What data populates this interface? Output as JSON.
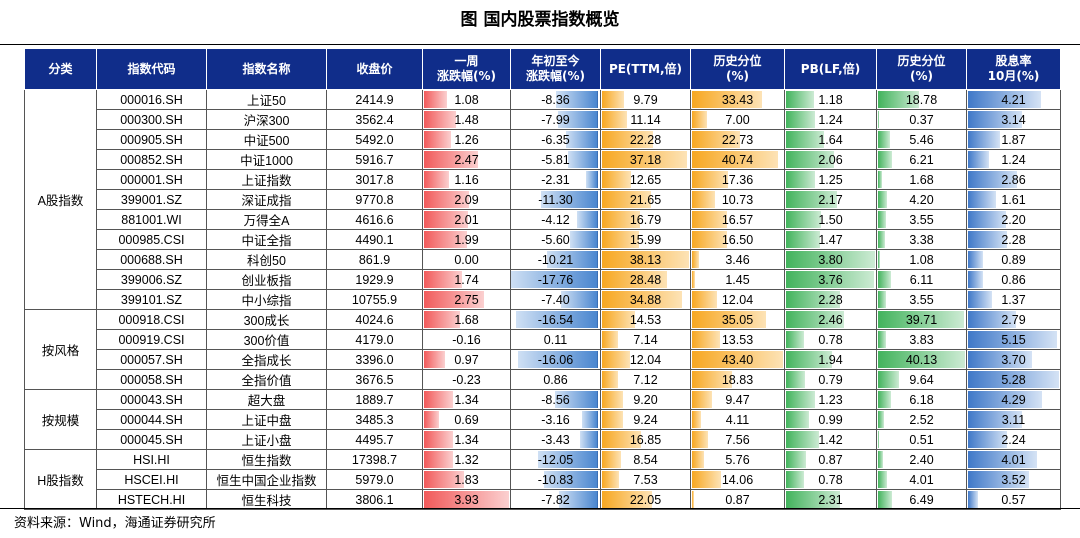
{
  "title": "图    国内股票指数概览",
  "source": "资料来源：Wind，海通证券研究所",
  "columns": [
    "分类",
    "指数代码",
    "指数名称",
    "收盘价",
    "一周\n涨跌幅(%)",
    "年初至今\n涨跌幅(%)",
    "PE(TTM,倍)",
    "历史分位\n(%)",
    "PB(LF,倍)",
    "历史分位\n(%)",
    "股息率\n10月(%)"
  ],
  "groups": [
    {
      "label": "A股指数",
      "rows": [
        [
          "000016.SH",
          "上证50",
          "2414.9",
          "1.08",
          "-8.36",
          "9.79",
          "33.43",
          "1.18",
          "18.78",
          "4.21"
        ],
        [
          "000300.SH",
          "沪深300",
          "3562.4",
          "1.48",
          "-7.99",
          "11.14",
          "7.00",
          "1.24",
          "0.37",
          "3.14"
        ],
        [
          "000905.SH",
          "中证500",
          "5492.0",
          "1.26",
          "-6.35",
          "22.28",
          "22.73",
          "1.64",
          "5.46",
          "1.87"
        ],
        [
          "000852.SH",
          "中证1000",
          "5916.7",
          "2.47",
          "-5.81",
          "37.18",
          "40.74",
          "2.06",
          "6.21",
          "1.24"
        ],
        [
          "000001.SH",
          "上证指数",
          "3017.8",
          "1.16",
          "-2.31",
          "12.65",
          "17.36",
          "1.25",
          "1.68",
          "2.86"
        ],
        [
          "399001.SZ",
          "深证成指",
          "9770.8",
          "2.09",
          "-11.30",
          "21.65",
          "10.73",
          "2.17",
          "4.20",
          "1.61"
        ],
        [
          "881001.WI",
          "万得全A",
          "4616.6",
          "2.01",
          "-4.12",
          "16.79",
          "16.57",
          "1.50",
          "3.55",
          "2.20"
        ],
        [
          "000985.CSI",
          "中证全指",
          "4490.1",
          "1.99",
          "-5.60",
          "15.99",
          "16.50",
          "1.47",
          "3.38",
          "2.28"
        ],
        [
          "000688.SH",
          "科创50",
          "861.9",
          "0.00",
          "-10.21",
          "38.13",
          "3.46",
          "3.80",
          "1.08",
          "0.89"
        ],
        [
          "399006.SZ",
          "创业板指",
          "1929.9",
          "1.74",
          "-17.76",
          "28.48",
          "1.45",
          "3.76",
          "6.11",
          "0.86"
        ],
        [
          "399101.SZ",
          "中小综指",
          "10755.9",
          "2.75",
          "-7.40",
          "34.88",
          "12.04",
          "2.28",
          "3.55",
          "1.37"
        ]
      ]
    },
    {
      "label": "按风格",
      "rows": [
        [
          "000918.CSI",
          "300成长",
          "4024.6",
          "1.68",
          "-16.54",
          "14.53",
          "35.05",
          "2.46",
          "39.71",
          "2.79"
        ],
        [
          "000919.CSI",
          "300价值",
          "4179.0",
          "-0.16",
          "0.11",
          "7.14",
          "13.53",
          "0.78",
          "3.83",
          "5.15"
        ],
        [
          "000057.SH",
          "全指成长",
          "3396.0",
          "0.97",
          "-16.06",
          "12.04",
          "43.40",
          "1.94",
          "40.13",
          "3.70"
        ],
        [
          "000058.SH",
          "全指价值",
          "3676.5",
          "-0.23",
          "0.86",
          "7.12",
          "18.83",
          "0.79",
          "9.64",
          "5.28"
        ]
      ]
    },
    {
      "label": "按规模",
      "rows": [
        [
          "000043.SH",
          "超大盘",
          "1889.7",
          "1.34",
          "-8.56",
          "9.20",
          "9.47",
          "1.23",
          "6.18",
          "4.29"
        ],
        [
          "000044.SH",
          "上证中盘",
          "3485.3",
          "0.69",
          "-3.16",
          "9.24",
          "4.11",
          "0.99",
          "2.52",
          "3.11"
        ],
        [
          "000045.SH",
          "上证小盘",
          "4495.7",
          "1.34",
          "-3.43",
          "16.85",
          "7.56",
          "1.42",
          "0.51",
          "2.24"
        ]
      ]
    },
    {
      "label": "H股指数",
      "rows": [
        [
          "HSI.HI",
          "恒生指数",
          "17398.7",
          "1.32",
          "-12.05",
          "8.54",
          "5.76",
          "0.87",
          "2.40",
          "4.01"
        ],
        [
          "HSCEI.HI",
          "恒生中国企业指数",
          "5979.0",
          "1.83",
          "-10.83",
          "7.53",
          "14.06",
          "0.78",
          "4.01",
          "3.52"
        ],
        [
          "HSTECH.HI",
          "恒生科技",
          "3806.1",
          "3.93",
          "-7.82",
          "22.05",
          "0.87",
          "2.31",
          "6.49",
          "0.57"
        ]
      ]
    }
  ],
  "bar_colors": {
    "weekly": "#f15a5a",
    "ytd": "#4a86cf",
    "pe": "#f7a721",
    "pe_pct": "#f7a721",
    "pb": "#42b35c",
    "pb_pct": "#42b35c",
    "dividend": "#3f78c8"
  }
}
